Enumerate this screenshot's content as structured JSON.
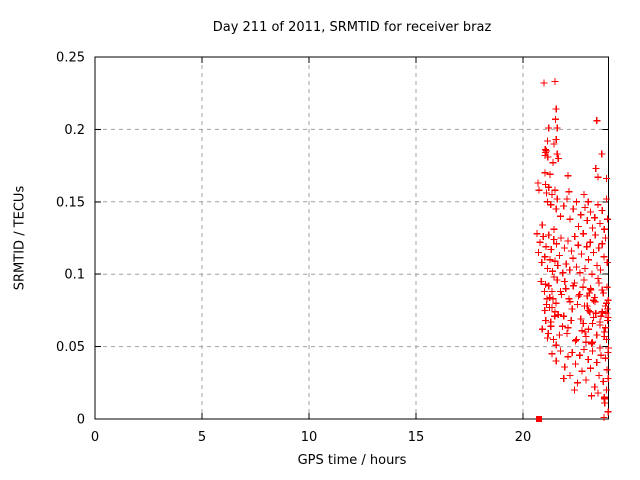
{
  "window": {
    "background": "#ffffff"
  },
  "chart_data": {
    "type": "scatter",
    "title": "Day 211 of 2011, SRMTID for receiver braz",
    "xlabel": "GPS time / hours",
    "ylabel": "SRMTID / TECUs",
    "xlim": [
      0,
      24
    ],
    "ylim": [
      0,
      0.25
    ],
    "xticks": [
      [
        0,
        "0"
      ],
      [
        5,
        "5"
      ],
      [
        10,
        "10"
      ],
      [
        15,
        "15"
      ],
      [
        20,
        "20"
      ]
    ],
    "yticks": [
      [
        0,
        "0"
      ],
      [
        0.05,
        "0.05"
      ],
      [
        0.1,
        "0.1"
      ],
      [
        0.15,
        "0.15"
      ],
      [
        0.2,
        "0.2"
      ],
      [
        0.25,
        "0.25"
      ]
    ],
    "grid": true,
    "legend": "none",
    "colors": {
      "marker": "#ff0000",
      "grid": "#a0a0a0",
      "border": "#000000",
      "text": "#000000"
    },
    "series": [
      {
        "name": "srmtid-points",
        "marker": "plus",
        "color": "#ff0000",
        "points": [
          [
            20.98,
            0.232
          ],
          [
            21.5,
            0.233
          ],
          [
            21.55,
            0.214
          ],
          [
            21.52,
            0.207
          ],
          [
            23.45,
            0.206
          ],
          [
            21.2,
            0.201
          ],
          [
            21.6,
            0.201
          ],
          [
            21.55,
            0.193
          ],
          [
            21.15,
            0.192
          ],
          [
            21.04,
            0.186
          ],
          [
            21.1,
            0.185
          ],
          [
            21.06,
            0.184
          ],
          [
            21.03,
            0.182
          ],
          [
            21.16,
            0.181
          ],
          [
            21.6,
            0.183
          ],
          [
            21.65,
            0.18
          ],
          [
            23.68,
            0.183
          ],
          [
            23.4,
            0.173
          ],
          [
            21.03,
            0.17
          ],
          [
            21.26,
            0.169
          ],
          [
            22.1,
            0.168
          ],
          [
            23.5,
            0.167
          ],
          [
            21.4,
            0.177
          ],
          [
            21.45,
            0.19
          ],
          [
            23.9,
            0.166
          ],
          [
            20.7,
            0.163
          ],
          [
            20.75,
            0.158
          ],
          [
            21.05,
            0.162
          ],
          [
            21.1,
            0.156
          ],
          [
            21.15,
            0.15
          ],
          [
            21.2,
            0.16
          ],
          [
            21.3,
            0.148
          ],
          [
            21.35,
            0.155
          ],
          [
            21.5,
            0.158
          ],
          [
            21.55,
            0.145
          ],
          [
            21.6,
            0.152
          ],
          [
            21.75,
            0.14
          ],
          [
            21.9,
            0.147
          ],
          [
            22.05,
            0.152
          ],
          [
            22.2,
            0.138
          ],
          [
            22.35,
            0.145
          ],
          [
            22.5,
            0.15
          ],
          [
            22.6,
            0.133
          ],
          [
            22.7,
            0.141
          ],
          [
            22.85,
            0.155
          ],
          [
            22.9,
            0.146
          ],
          [
            23.0,
            0.137
          ],
          [
            23.05,
            0.15
          ],
          [
            23.15,
            0.143
          ],
          [
            23.25,
            0.132
          ],
          [
            23.35,
            0.139
          ],
          [
            23.5,
            0.148
          ],
          [
            23.6,
            0.135
          ],
          [
            23.7,
            0.144
          ],
          [
            23.8,
            0.131
          ],
          [
            23.9,
            0.152
          ],
          [
            23.95,
            0.138
          ],
          [
            20.9,
            0.134
          ],
          [
            21.45,
            0.131
          ],
          [
            22.15,
            0.157
          ],
          [
            20.65,
            0.128
          ],
          [
            20.72,
            0.115
          ],
          [
            20.8,
            0.122
          ],
          [
            20.88,
            0.108
          ],
          [
            20.95,
            0.126
          ],
          [
            21.02,
            0.112
          ],
          [
            21.08,
            0.119
          ],
          [
            21.14,
            0.104
          ],
          [
            21.2,
            0.127
          ],
          [
            21.26,
            0.11
          ],
          [
            21.32,
            0.117
          ],
          [
            21.38,
            0.102
          ],
          [
            21.44,
            0.124
          ],
          [
            21.5,
            0.109
          ],
          [
            21.56,
            0.121
          ],
          [
            21.62,
            0.106
          ],
          [
            21.7,
            0.113
          ],
          [
            21.78,
            0.125
          ],
          [
            21.86,
            0.101
          ],
          [
            21.94,
            0.118
          ],
          [
            22.02,
            0.107
          ],
          [
            22.1,
            0.123
          ],
          [
            22.18,
            0.103
          ],
          [
            22.26,
            0.116
          ],
          [
            22.34,
            0.111
          ],
          [
            22.42,
            0.126
          ],
          [
            22.5,
            0.105
          ],
          [
            22.58,
            0.12
          ],
          [
            22.66,
            0.101
          ],
          [
            22.74,
            0.114
          ],
          [
            22.82,
            0.128
          ],
          [
            22.9,
            0.104
          ],
          [
            22.98,
            0.119
          ],
          [
            23.06,
            0.11
          ],
          [
            23.14,
            0.122
          ],
          [
            23.22,
            0.1
          ],
          [
            23.3,
            0.115
          ],
          [
            23.38,
            0.127
          ],
          [
            23.46,
            0.106
          ],
          [
            23.54,
            0.118
          ],
          [
            23.62,
            0.103
          ],
          [
            23.7,
            0.121
          ],
          [
            23.78,
            0.112
          ],
          [
            23.86,
            0.125
          ],
          [
            23.94,
            0.108
          ],
          [
            20.85,
            0.095
          ],
          [
            21.0,
            0.088
          ],
          [
            21.1,
            0.079
          ],
          [
            21.2,
            0.092
          ],
          [
            21.3,
            0.067
          ],
          [
            21.4,
            0.083
          ],
          [
            21.5,
            0.074
          ],
          [
            21.6,
            0.096
          ],
          [
            21.7,
            0.058
          ],
          [
            21.8,
            0.086
          ],
          [
            21.9,
            0.071
          ],
          [
            22.0,
            0.09
          ],
          [
            22.1,
            0.063
          ],
          [
            22.2,
            0.081
          ],
          [
            22.3,
            0.076
          ],
          [
            22.4,
            0.094
          ],
          [
            22.5,
            0.055
          ],
          [
            22.6,
            0.085
          ],
          [
            22.7,
            0.069
          ],
          [
            22.8,
            0.091
          ],
          [
            22.9,
            0.06
          ],
          [
            23.0,
            0.078
          ],
          [
            23.1,
            0.087
          ],
          [
            23.2,
            0.052
          ],
          [
            23.3,
            0.082
          ],
          [
            23.4,
            0.073
          ],
          [
            23.5,
            0.097
          ],
          [
            23.6,
            0.065
          ],
          [
            23.7,
            0.089
          ],
          [
            23.8,
            0.057
          ],
          [
            23.9,
            0.08
          ],
          [
            23.98,
            0.07
          ],
          [
            20.9,
            0.062
          ],
          [
            21.05,
            0.093
          ],
          [
            21.15,
            0.056
          ],
          [
            21.25,
            0.084
          ],
          [
            21.35,
            0.077
          ],
          [
            21.45,
            0.098
          ],
          [
            21.55,
            0.051
          ],
          [
            21.65,
            0.072
          ],
          [
            21.75,
            0.088
          ],
          [
            21.85,
            0.064
          ],
          [
            21.95,
            0.095
          ],
          [
            22.05,
            0.059
          ],
          [
            22.15,
            0.083
          ],
          [
            22.25,
            0.068
          ],
          [
            22.35,
            0.092
          ],
          [
            22.45,
            0.054
          ],
          [
            22.55,
            0.079
          ],
          [
            22.65,
            0.086
          ],
          [
            22.75,
            0.061
          ],
          [
            22.85,
            0.096
          ],
          [
            22.95,
            0.053
          ],
          [
            23.05,
            0.075
          ],
          [
            23.15,
            0.09
          ],
          [
            23.25,
            0.066
          ],
          [
            23.35,
            0.084
          ],
          [
            23.45,
            0.058
          ],
          [
            23.55,
            0.094
          ],
          [
            23.65,
            0.071
          ],
          [
            23.75,
            0.087
          ],
          [
            23.85,
            0.063
          ],
          [
            23.95,
            0.076
          ],
          [
            21.02,
            0.075
          ],
          [
            21.06,
            0.068
          ],
          [
            21.12,
            0.083
          ],
          [
            21.18,
            0.059
          ],
          [
            21.24,
            0.077
          ],
          [
            21.3,
            0.064
          ],
          [
            21.36,
            0.088
          ],
          [
            21.42,
            0.055
          ],
          [
            21.48,
            0.071
          ],
          [
            21.54,
            0.08
          ],
          [
            22.82,
            0.066
          ],
          [
            22.88,
            0.078
          ],
          [
            22.94,
            0.057
          ],
          [
            23.0,
            0.085
          ],
          [
            23.06,
            0.062
          ],
          [
            23.12,
            0.074
          ],
          [
            23.18,
            0.089
          ],
          [
            23.24,
            0.053
          ],
          [
            23.3,
            0.07
          ],
          [
            23.36,
            0.081
          ],
          [
            23.6,
            0.067
          ],
          [
            23.7,
            0.074
          ],
          [
            23.8,
            0.06
          ],
          [
            23.85,
            0.078
          ],
          [
            23.9,
            0.055
          ],
          [
            23.95,
            0.068
          ],
          [
            23.98,
            0.082
          ],
          [
            23.99,
            0.049
          ],
          [
            23.92,
            0.091
          ],
          [
            23.88,
            0.073
          ],
          [
            21.35,
            0.045
          ],
          [
            21.55,
            0.04
          ],
          [
            21.75,
            0.047
          ],
          [
            21.95,
            0.036
          ],
          [
            22.1,
            0.043
          ],
          [
            22.2,
            0.03
          ],
          [
            22.3,
            0.046
          ],
          [
            22.45,
            0.038
          ],
          [
            22.55,
            0.025
          ],
          [
            22.65,
            0.044
          ],
          [
            22.75,
            0.033
          ],
          [
            22.85,
            0.048
          ],
          [
            22.95,
            0.027
          ],
          [
            23.05,
            0.041
          ],
          [
            23.15,
            0.035
          ],
          [
            23.25,
            0.047
          ],
          [
            23.35,
            0.022
          ],
          [
            23.45,
            0.039
          ],
          [
            23.55,
            0.03
          ],
          [
            23.65,
            0.044
          ],
          [
            23.75,
            0.026
          ],
          [
            23.85,
            0.042
          ],
          [
            23.92,
            0.034
          ],
          [
            23.97,
            0.046
          ],
          [
            23.5,
            0.018
          ],
          [
            23.8,
            0.015
          ],
          [
            22.4,
            0.02
          ],
          [
            21.9,
            0.028
          ],
          [
            23.2,
            0.016
          ],
          [
            23.9,
            0.02
          ],
          [
            23.6,
            0.049
          ],
          [
            23.98,
            0.028
          ],
          [
            23.79,
            0.001
          ],
          [
            23.8,
            0.014
          ],
          [
            23.82,
            0.011
          ],
          [
            23.98,
            0.005
          ]
        ]
      },
      {
        "name": "srmtid-flag-point",
        "marker": "square",
        "color": "#ff0000",
        "points": [
          [
            20.75,
            0.0
          ]
        ]
      }
    ]
  }
}
